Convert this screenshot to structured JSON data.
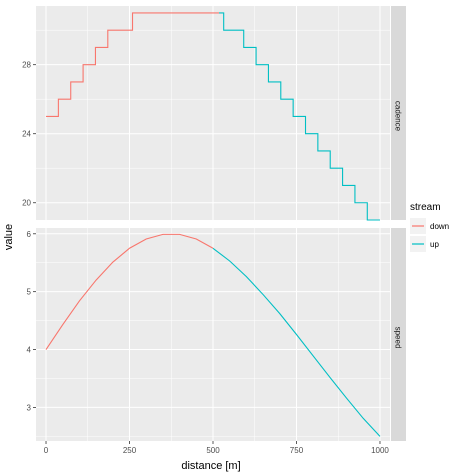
{
  "chart_data": {
    "type": "line",
    "xlabel": "distance [m]",
    "ylabel": "value",
    "x_ticks": [
      0,
      250,
      500,
      750,
      1000
    ],
    "xlim": [
      -30,
      1030
    ],
    "legend": {
      "title": "stream",
      "placement": "right",
      "entries": [
        {
          "name": "down",
          "color": "#F8766D"
        },
        {
          "name": "up",
          "color": "#00BFC4"
        }
      ]
    },
    "panels": [
      {
        "name": "cadence",
        "ylim": [
          19.0,
          31.4
        ],
        "y_ticks": [
          20,
          24,
          28
        ],
        "series": [
          {
            "name": "down",
            "color": "#F8766D",
            "x": [
              0,
              37,
              37,
              74,
              74,
              111,
              111,
              148,
              148,
              185,
              185,
              222,
              222,
              259,
              259,
              296,
              333,
              370,
              407,
              444,
              481,
              518
            ],
            "y": [
              25.0,
              25.0,
              26.0,
              26.0,
              27.0,
              27.0,
              28.0,
              28.0,
              29.0,
              29.0,
              30.0,
              30.0,
              30.0,
              30.0,
              31.0,
              31.0,
              31.0,
              31.0,
              31.0,
              31.0,
              31.0,
              31.0
            ]
          },
          {
            "name": "up",
            "color": "#00BFC4",
            "x": [
              518,
              532,
              532,
              592,
              592,
              629,
              629,
              666,
              666,
              703,
              703,
              740,
              740,
              777,
              777,
              814,
              814,
              851,
              851,
              888,
              888,
              925,
              925,
              962,
              962,
              1000
            ],
            "y": [
              31.0,
              31.0,
              30.0,
              30.0,
              29.0,
              29.0,
              28.0,
              28.0,
              27.0,
              27.0,
              26.0,
              26.0,
              25.0,
              25.0,
              24.0,
              24.0,
              23.0,
              23.0,
              22.0,
              22.0,
              21.0,
              21.0,
              20.0,
              20.0,
              19.0,
              19.0
            ]
          }
        ]
      },
      {
        "name": "speed",
        "ylim": [
          2.42,
          6.1
        ],
        "y_ticks": [
          3,
          4,
          5,
          6
        ],
        "series": [
          {
            "name": "down",
            "color": "#F8766D",
            "x": [
              0,
              50,
              100,
              150,
              200,
              250,
              300,
              350,
              400,
              450,
              500
            ],
            "y": [
              4.0,
              4.43,
              4.84,
              5.2,
              5.51,
              5.75,
              5.91,
              5.99,
              5.99,
              5.91,
              5.75
            ]
          },
          {
            "name": "up",
            "color": "#00BFC4",
            "x": [
              500,
              550,
              600,
              650,
              700,
              750,
              800,
              850,
              900,
              950,
              1000
            ],
            "y": [
              5.75,
              5.53,
              5.26,
              4.95,
              4.62,
              4.26,
              3.89,
              3.52,
              3.16,
              2.81,
              2.5
            ]
          }
        ]
      }
    ]
  }
}
